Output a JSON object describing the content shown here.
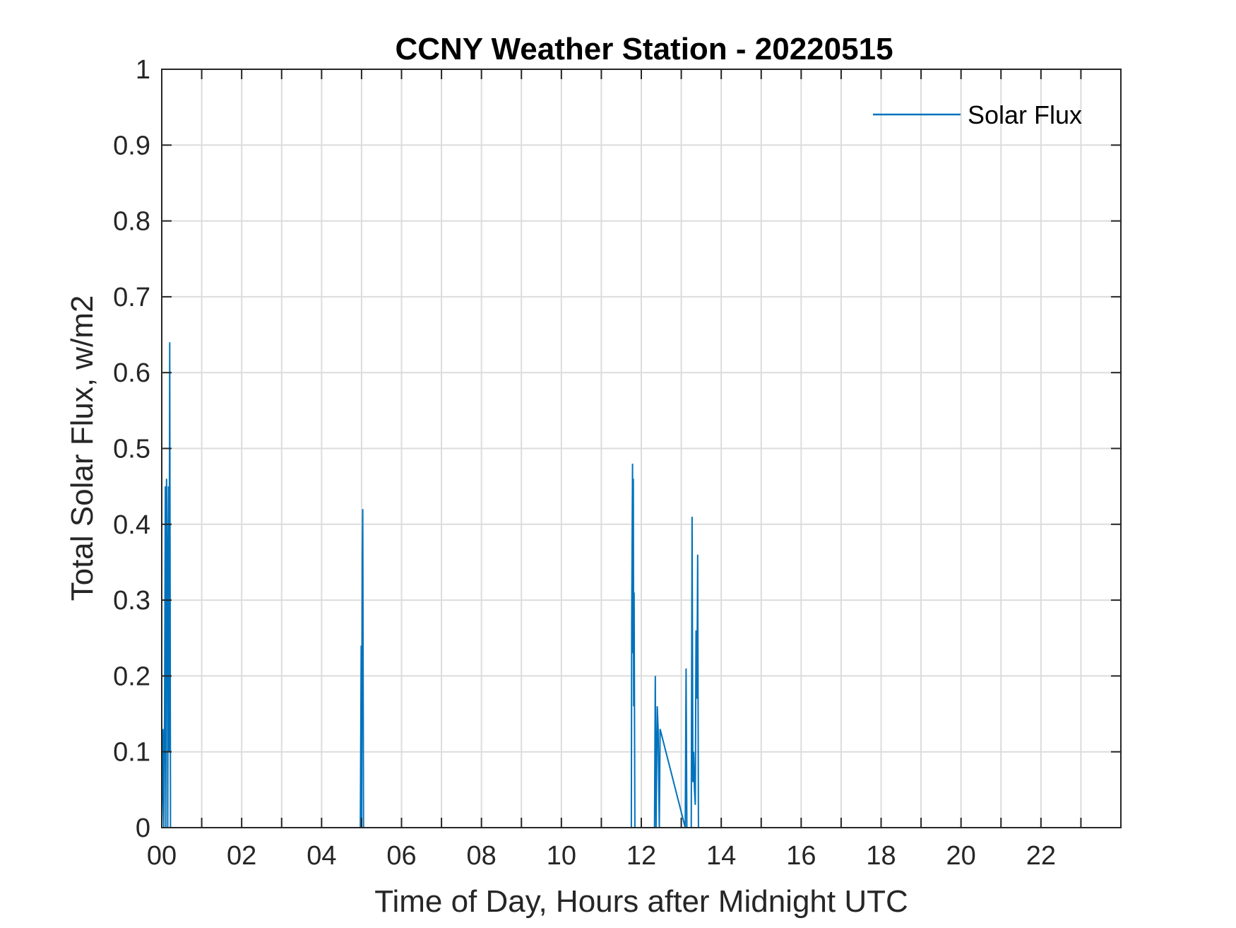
{
  "chart_data": {
    "type": "line",
    "title": "CCNY Weather Station - 20220515",
    "xlabel": "Time of Day, Hours after Midnight UTC",
    "ylabel": "Total Solar Flux, w/m2",
    "xlim": [
      0,
      24
    ],
    "ylim": [
      0,
      1
    ],
    "grid": true,
    "legend_position": "top-right",
    "x_ticks": [
      0,
      2,
      4,
      6,
      8,
      10,
      12,
      14,
      16,
      18,
      20,
      22
    ],
    "x_tick_labels": [
      "00",
      "02",
      "04",
      "06",
      "08",
      "10",
      "12",
      "14",
      "16",
      "18",
      "20",
      "22"
    ],
    "y_ticks": [
      0,
      0.1,
      0.2,
      0.3,
      0.4,
      0.5,
      0.6,
      0.7,
      0.8,
      0.9,
      1
    ],
    "y_tick_labels": [
      "0",
      "0.1",
      "0.2",
      "0.3",
      "0.4",
      "0.5",
      "0.6",
      "0.7",
      "0.8",
      "0.9",
      "1"
    ],
    "series": [
      {
        "name": "Solar Flux",
        "color": "#0072BD",
        "x": [
          0.0,
          0.03,
          0.05,
          0.07,
          0.09,
          0.1,
          0.12,
          0.14,
          0.15,
          0.17,
          0.18,
          0.2,
          0.22,
          0.24,
          0.26,
          0.28,
          4.97,
          4.99,
          5.0,
          5.02,
          5.03,
          5.05,
          11.75,
          11.76,
          11.78,
          11.79,
          11.8,
          11.81,
          11.82,
          11.84,
          11.85,
          12.33,
          12.35,
          12.37,
          12.4,
          12.42,
          12.45,
          12.47,
          13.1,
          13.12,
          13.14,
          13.25,
          13.27,
          13.29,
          13.31,
          13.33,
          13.35,
          13.37,
          13.39,
          13.41,
          13.43,
          13.45
        ],
        "y": [
          0.0,
          0.13,
          0.0,
          0.15,
          0.45,
          0.0,
          0.46,
          0.32,
          0.0,
          0.45,
          0.1,
          0.64,
          0.0,
          0.0,
          0.0,
          0.0,
          0.0,
          0.24,
          0.0,
          0.36,
          0.42,
          0.0,
          0.0,
          0.27,
          0.48,
          0.23,
          0.46,
          0.16,
          0.31,
          0.0,
          0.0,
          0.0,
          0.2,
          0.0,
          0.16,
          0.13,
          0.0,
          0.13,
          0.0,
          0.21,
          0.0,
          0.0,
          0.41,
          0.06,
          0.1,
          0.05,
          0.03,
          0.26,
          0.17,
          0.36,
          0.0,
          0.0
        ]
      }
    ]
  }
}
